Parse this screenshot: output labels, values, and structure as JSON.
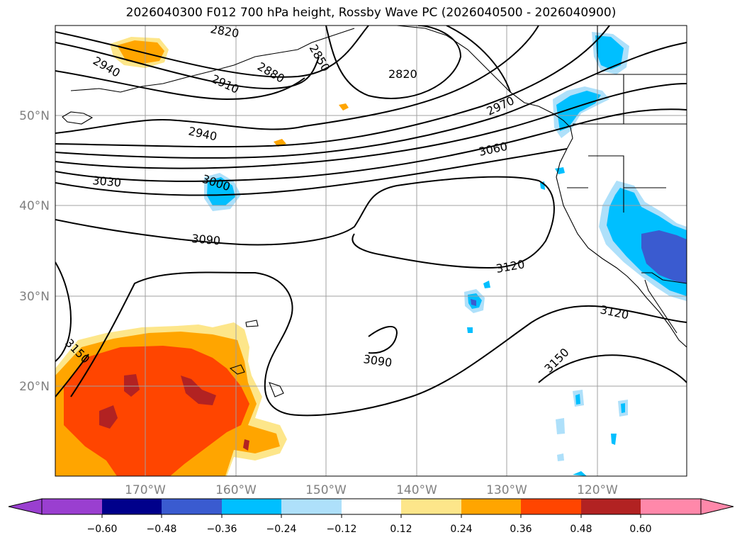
{
  "title": "2026040300 F012 700 hPa height, Rossby Wave PC (2026040500 - 2026040900)",
  "latitudes": [
    {
      "value": 50,
      "label": "50°N"
    },
    {
      "value": 40,
      "label": "40°N"
    },
    {
      "value": 30,
      "label": "30°N"
    },
    {
      "value": 20,
      "label": "20°N"
    }
  ],
  "longitudes": [
    {
      "value": -170,
      "label": "170°W"
    },
    {
      "value": -160,
      "label": "160°W"
    },
    {
      "value": -150,
      "label": "150°W"
    },
    {
      "value": -140,
      "label": "140°W"
    },
    {
      "value": -130,
      "label": "130°W"
    },
    {
      "value": -120,
      "label": "120°W"
    }
  ],
  "colorbar": {
    "ticks": [
      "−0.60",
      "−0.48",
      "−0.36",
      "−0.24",
      "−0.12",
      "0.12",
      "0.24",
      "0.36",
      "0.48",
      "0.60"
    ],
    "colors": [
      "#9a3fd0",
      "#00008b",
      "#3a5bd0",
      "#00bfff",
      "#aee0fa",
      "#ffffff",
      "#fde68a",
      "#ffa500",
      "#ff4500",
      "#b22222",
      "#ff88aa"
    ]
  },
  "contour_labels": [
    "2820",
    "2850",
    "2880",
    "2910",
    "2940",
    "2940",
    "2820",
    "2970",
    "3000",
    "3030",
    "3060",
    "3090",
    "3120",
    "3120",
    "3150",
    "3150",
    "3090"
  ]
}
